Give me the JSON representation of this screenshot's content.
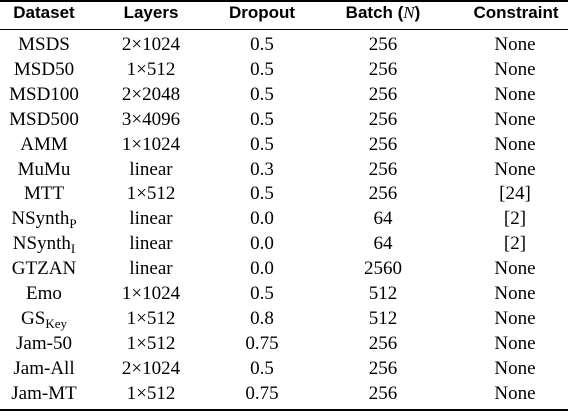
{
  "table": {
    "headers": {
      "dataset": "Dataset",
      "layers": "Layers",
      "dropout": "Dropout",
      "batch_prefix": "Batch (",
      "batch_var": "N",
      "batch_suffix": ")",
      "constraint": "Constraint"
    },
    "rows": [
      {
        "dataset": "MSDS",
        "dataset_sub": "",
        "layers": "2×1024",
        "dropout": "0.5",
        "batch": "256",
        "constraint": "None"
      },
      {
        "dataset": "MSD50",
        "dataset_sub": "",
        "layers": "1×512",
        "dropout": "0.5",
        "batch": "256",
        "constraint": "None"
      },
      {
        "dataset": "MSD100",
        "dataset_sub": "",
        "layers": "2×2048",
        "dropout": "0.5",
        "batch": "256",
        "constraint": "None"
      },
      {
        "dataset": "MSD500",
        "dataset_sub": "",
        "layers": "3×4096",
        "dropout": "0.5",
        "batch": "256",
        "constraint": "None"
      },
      {
        "dataset": "AMM",
        "dataset_sub": "",
        "layers": "1×1024",
        "dropout": "0.5",
        "batch": "256",
        "constraint": "None"
      },
      {
        "dataset": "MuMu",
        "dataset_sub": "",
        "layers": "linear",
        "dropout": "0.3",
        "batch": "256",
        "constraint": "None"
      },
      {
        "dataset": "MTT",
        "dataset_sub": "",
        "layers": "1×512",
        "dropout": "0.5",
        "batch": "256",
        "constraint": "[24]"
      },
      {
        "dataset": "NSynth",
        "dataset_sub": "P",
        "layers": "linear",
        "dropout": "0.0",
        "batch": "64",
        "constraint": "[2]"
      },
      {
        "dataset": "NSynth",
        "dataset_sub": "I",
        "layers": "linear",
        "dropout": "0.0",
        "batch": "64",
        "constraint": "[2]"
      },
      {
        "dataset": "GTZAN",
        "dataset_sub": "",
        "layers": "linear",
        "dropout": "0.0",
        "batch": "2560",
        "constraint": "None"
      },
      {
        "dataset": "Emo",
        "dataset_sub": "",
        "layers": "1×1024",
        "dropout": "0.5",
        "batch": "512",
        "constraint": "None"
      },
      {
        "dataset": "GS",
        "dataset_sub": "Key",
        "layers": "1×512",
        "dropout": "0.8",
        "batch": "512",
        "constraint": "None"
      },
      {
        "dataset": "Jam-50",
        "dataset_sub": "",
        "layers": "1×512",
        "dropout": "0.75",
        "batch": "256",
        "constraint": "None"
      },
      {
        "dataset": "Jam-All",
        "dataset_sub": "",
        "layers": "2×1024",
        "dropout": "0.5",
        "batch": "256",
        "constraint": "None"
      },
      {
        "dataset": "Jam-MT",
        "dataset_sub": "",
        "layers": "1×512",
        "dropout": "0.75",
        "batch": "256",
        "constraint": "None"
      }
    ]
  }
}
